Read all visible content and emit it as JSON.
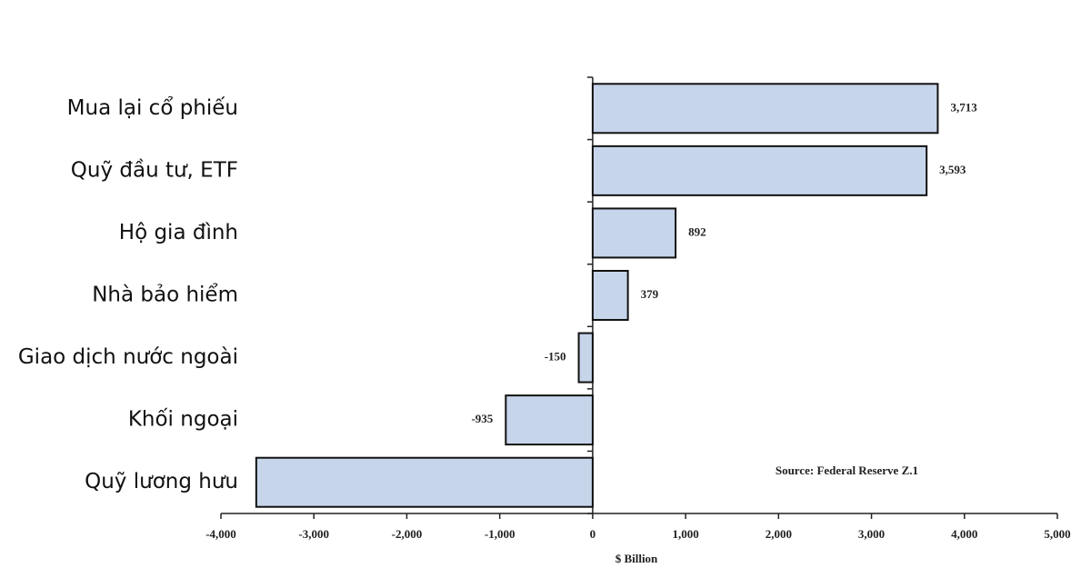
{
  "chart_data": {
    "type": "bar",
    "orientation": "horizontal",
    "categories": [
      "Mua lại cổ phiếu",
      "Quỹ đầu tư, ETF",
      "Hộ gia đình",
      "Nhà bảo hiểm",
      "Giao dịch nước ngoài",
      "Khối ngoại",
      "Quỹ lương hưu"
    ],
    "values": [
      3713,
      3593,
      892,
      379,
      -150,
      -935,
      -3620
    ],
    "value_labels": [
      "3,713",
      "3,593",
      "892",
      "379",
      "-150",
      "-935",
      null
    ],
    "color": "#c6d5ea",
    "xlim": [
      -4000,
      5000
    ],
    "xticks": [
      {
        "value": -4000,
        "label": "-4,000"
      },
      {
        "value": -3000,
        "label": "-3,000"
      },
      {
        "value": -2000,
        "label": "-2,000"
      },
      {
        "value": -1000,
        "label": "-1,000"
      },
      0,
      {
        "value": 1000,
        "label": "1,000"
      },
      {
        "value": 2000,
        "label": "2,000"
      },
      {
        "value": 3000,
        "label": "3,000"
      },
      {
        "value": 4000,
        "label": "4,000"
      },
      {
        "value": 5000,
        "label": "5,000"
      }
    ],
    "xlabel": "$ Billion",
    "annotation": "Source: Federal Reserve Z.1",
    "grid": false
  }
}
